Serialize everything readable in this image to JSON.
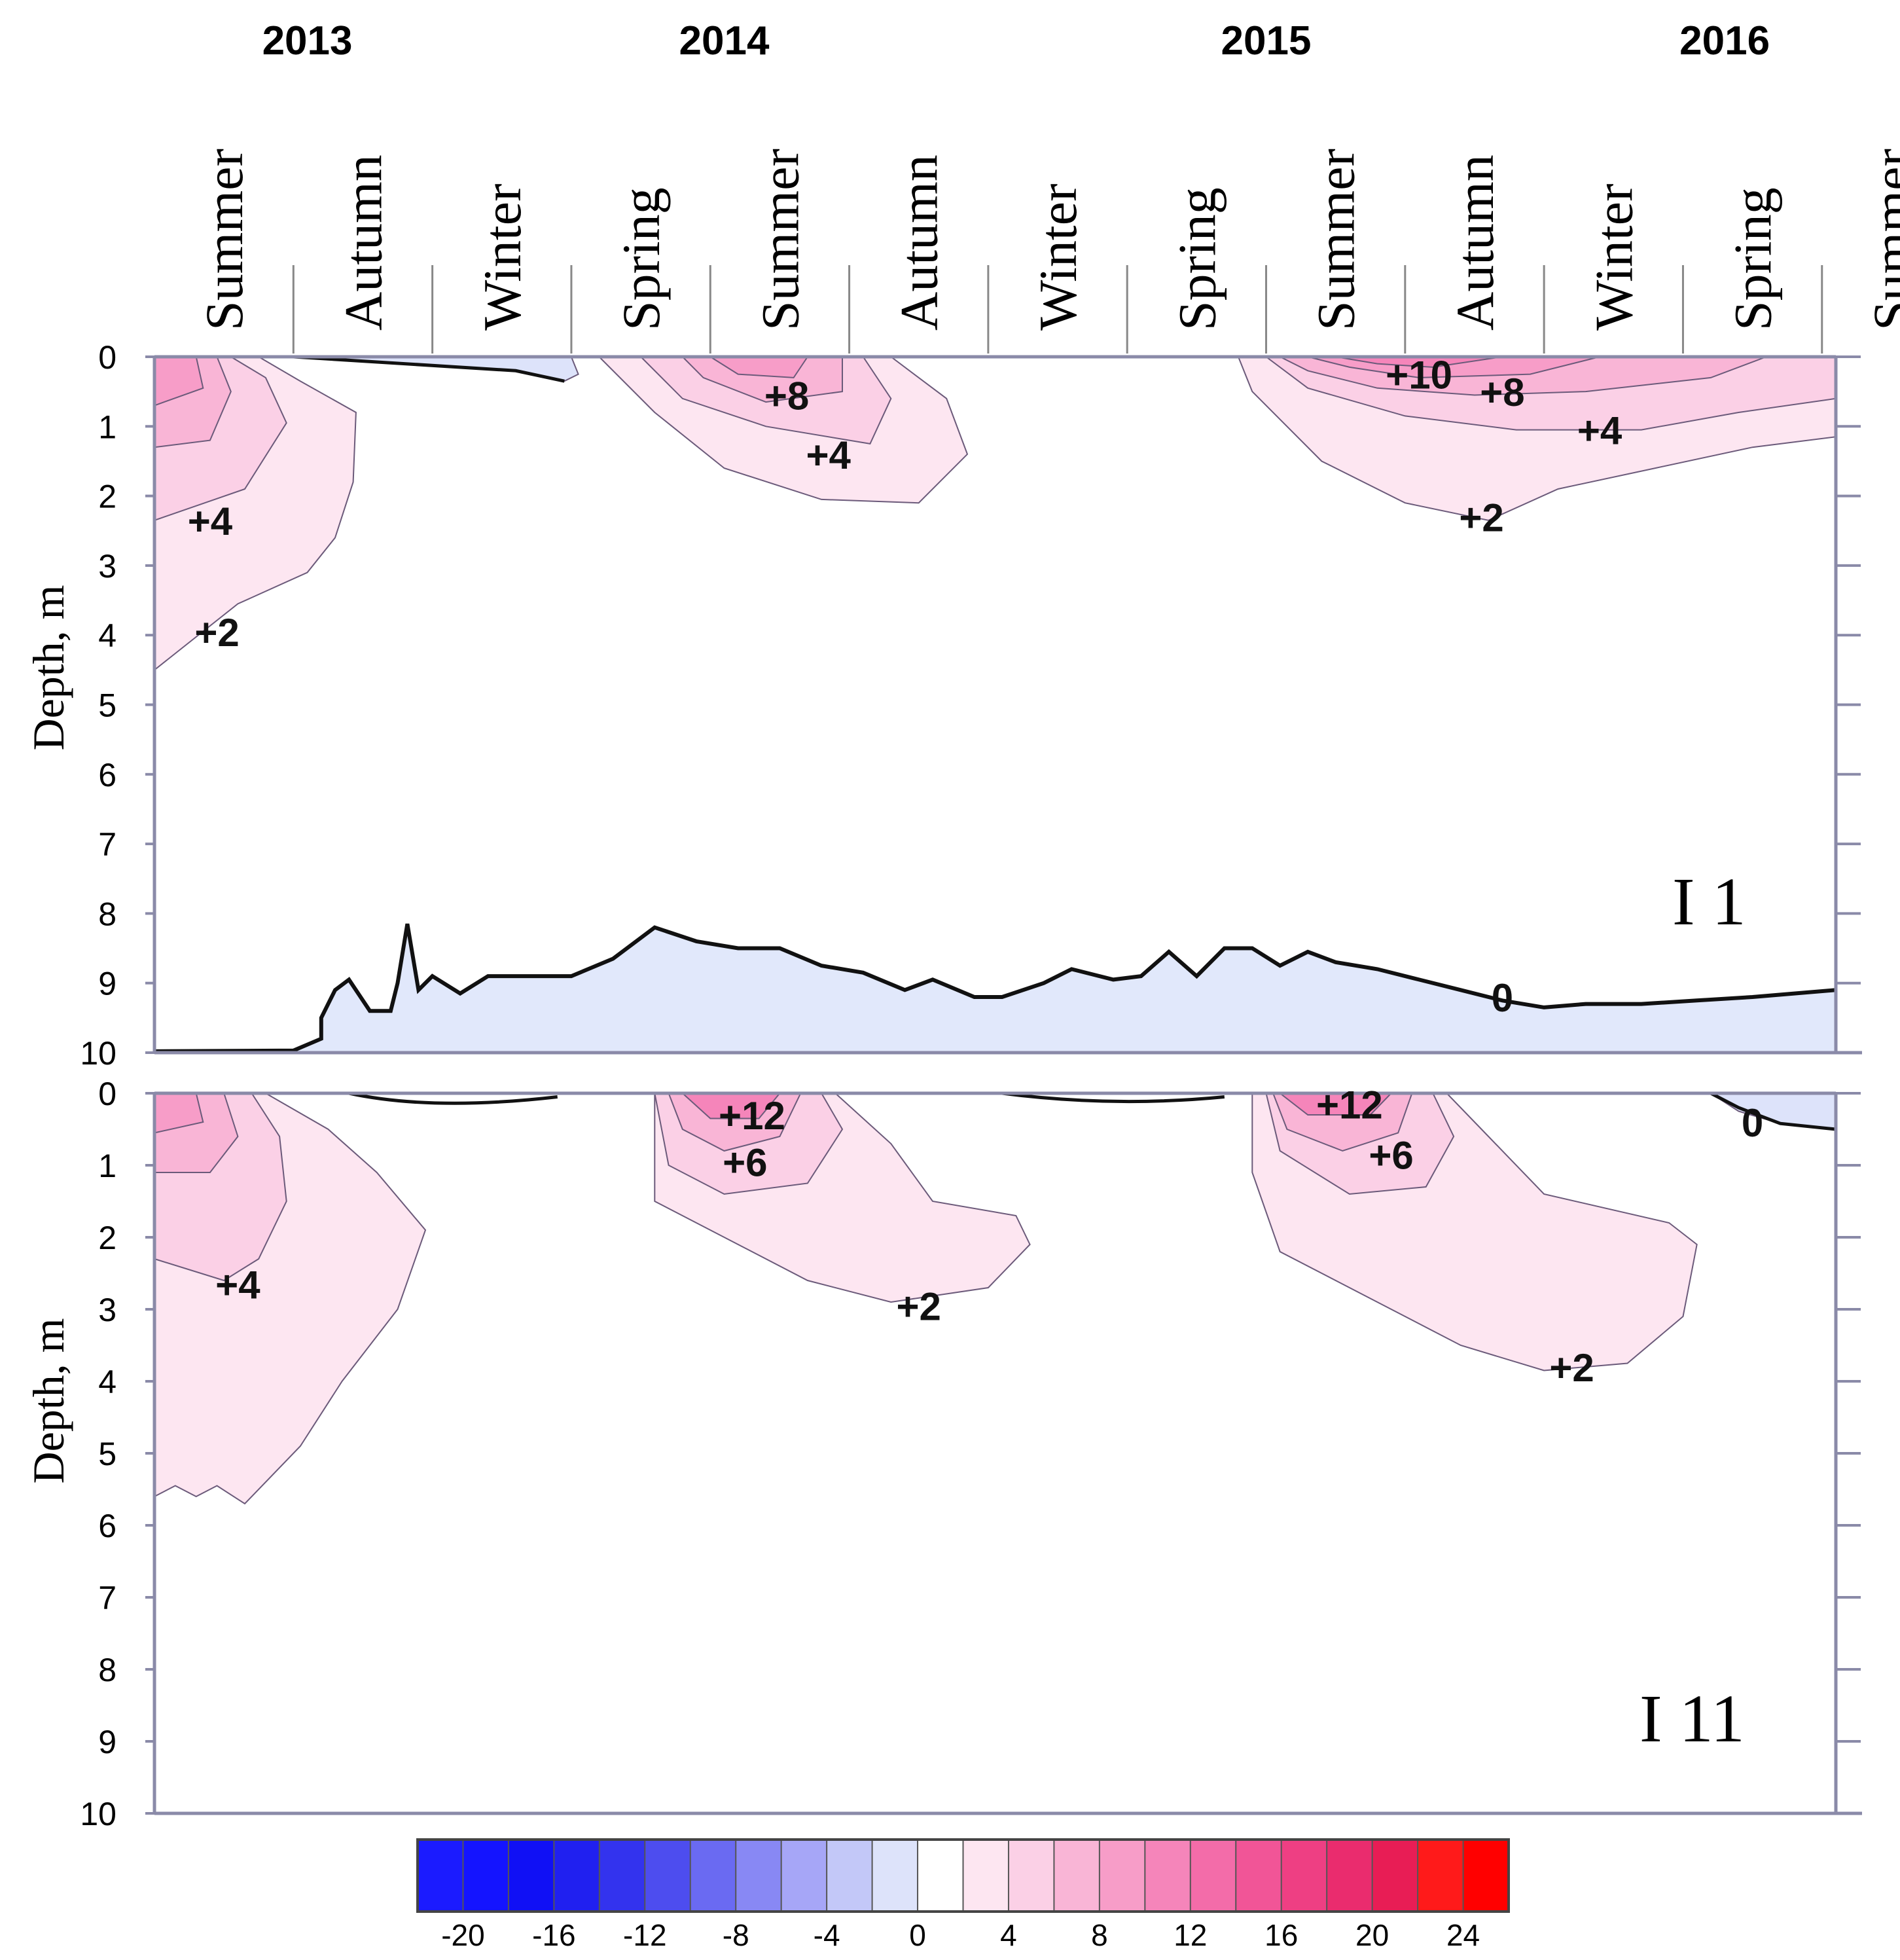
{
  "chart_data": {
    "type": "heatmap",
    "description_units": "temperature anomaly, depth profile over time",
    "years": [
      {
        "label": "2013",
        "t": 1.1
      },
      {
        "label": "2014",
        "t": 4.1
      },
      {
        "label": "2015",
        "t": 8.0
      },
      {
        "label": "2016",
        "t": 11.3
      }
    ],
    "seasons": [
      "Summer",
      "Autumn",
      "Winter",
      "Spring",
      "Summer",
      "Autumn",
      "Winter",
      "Spring",
      "Summer",
      "Autumn",
      "Winter",
      "Spring",
      "Summer"
    ],
    "time_range": [
      0,
      12.1
    ],
    "ylabel": "Depth, m",
    "ylim": [
      0,
      10
    ],
    "yticks": [
      "0",
      "1",
      "2",
      "3",
      "4",
      "5",
      "6",
      "7",
      "8",
      "9",
      "10"
    ],
    "panels": [
      {
        "id": "I 1",
        "label": "I 1",
        "contour_labels": [
          {
            "text": "+4",
            "t": 0.4,
            "d": 2.35
          },
          {
            "text": "+2",
            "t": 0.45,
            "d": 3.95
          },
          {
            "text": "+8",
            "t": 4.55,
            "d": 0.55
          },
          {
            "text": "+4",
            "t": 4.85,
            "d": 1.4
          },
          {
            "text": "+10",
            "t": 9.1,
            "d": 0.25
          },
          {
            "text": "+8",
            "t": 9.7,
            "d": 0.5
          },
          {
            "text": "+4",
            "t": 10.4,
            "d": 1.05
          },
          {
            "text": "+2",
            "t": 9.55,
            "d": 2.3
          },
          {
            "text": "0",
            "t": 9.7,
            "d": 9.2
          }
        ],
        "frozen_bottom_profile": [
          [
            0,
            9.98
          ],
          [
            1.0,
            9.97
          ],
          [
            1.2,
            9.8
          ],
          [
            1.2,
            9.5
          ],
          [
            1.3,
            9.1
          ],
          [
            1.4,
            8.95
          ],
          [
            1.55,
            9.4
          ],
          [
            1.7,
            9.4
          ],
          [
            1.75,
            9.0
          ],
          [
            1.82,
            8.15
          ],
          [
            1.9,
            9.1
          ],
          [
            2.0,
            8.9
          ],
          [
            2.2,
            9.15
          ],
          [
            2.4,
            8.9
          ],
          [
            2.7,
            8.9
          ],
          [
            3.0,
            8.9
          ],
          [
            3.3,
            8.65
          ],
          [
            3.6,
            8.2
          ],
          [
            3.9,
            8.4
          ],
          [
            4.2,
            8.5
          ],
          [
            4.5,
            8.5
          ],
          [
            4.8,
            8.75
          ],
          [
            5.1,
            8.85
          ],
          [
            5.4,
            9.1
          ],
          [
            5.6,
            8.95
          ],
          [
            5.9,
            9.2
          ],
          [
            6.1,
            9.2
          ],
          [
            6.4,
            9.0
          ],
          [
            6.6,
            8.8
          ],
          [
            6.9,
            8.95
          ],
          [
            7.1,
            8.9
          ],
          [
            7.3,
            8.55
          ],
          [
            7.5,
            8.9
          ],
          [
            7.7,
            8.5
          ],
          [
            7.9,
            8.5
          ],
          [
            8.1,
            8.75
          ],
          [
            8.3,
            8.55
          ],
          [
            8.5,
            8.7
          ],
          [
            8.8,
            8.8
          ],
          [
            9.1,
            8.95
          ],
          [
            9.4,
            9.1
          ],
          [
            9.7,
            9.25
          ],
          [
            10.0,
            9.35
          ],
          [
            10.3,
            9.3
          ],
          [
            10.7,
            9.3
          ],
          [
            11.1,
            9.25
          ],
          [
            11.5,
            9.2
          ],
          [
            11.8,
            9.15
          ],
          [
            12.1,
            9.1
          ]
        ]
      },
      {
        "id": "I 11",
        "label": "I 11",
        "contour_labels": [
          {
            "text": "+4",
            "t": 0.6,
            "d": 2.65
          },
          {
            "text": "+12",
            "t": 4.3,
            "d": 0.3
          },
          {
            "text": "+6",
            "t": 4.25,
            "d": 0.95
          },
          {
            "text": "+2",
            "t": 5.5,
            "d": 2.95
          },
          {
            "text": "+12",
            "t": 8.6,
            "d": 0.15
          },
          {
            "text": "+6",
            "t": 8.9,
            "d": 0.85
          },
          {
            "text": "+2",
            "t": 10.2,
            "d": 3.8
          },
          {
            "text": "0",
            "t": 11.5,
            "d": 0.4
          }
        ]
      }
    ],
    "colorbar": {
      "ticks": [
        "-20",
        "-16",
        "-12",
        "-8",
        "-4",
        "0",
        "4",
        "8",
        "12",
        "16",
        "20",
        "24"
      ],
      "range": [
        -22,
        26
      ],
      "step": 2,
      "colors": [
        "#1b1bff",
        "#1414ff",
        "#1010f5",
        "#2020f0",
        "#3333ee",
        "#4d4def",
        "#6a6af2",
        "#8888f4",
        "#a6a6f7",
        "#c3c8f8",
        "#dde3fa",
        "#ffffff",
        "#fde6f1",
        "#fbd0e6",
        "#f9b5d6",
        "#f79dc8",
        "#f585ba",
        "#f36ca9",
        "#f15597",
        "#ee3f83",
        "#ea2c6e",
        "#e81d55",
        "#ff1a1a",
        "#ff0000"
      ]
    }
  }
}
